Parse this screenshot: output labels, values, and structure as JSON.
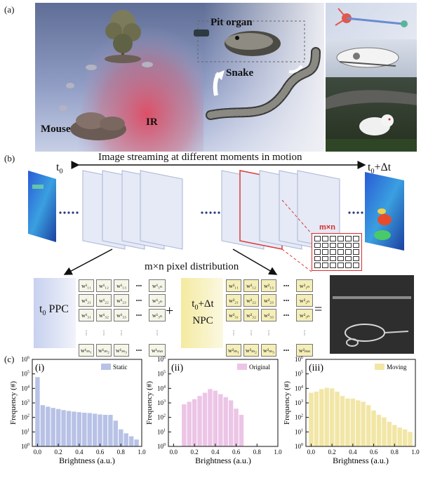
{
  "panel_a": {
    "label": "(a)",
    "labels": {
      "pit_organ": "Pit organ",
      "snake": "Snake",
      "mouse": "Mouse",
      "ir": "IR"
    }
  },
  "panel_b": {
    "label": "(b)",
    "streaming_caption": "Image streaming at different moments in motion",
    "t0": "t",
    "t0_sub": "0",
    "t1": "t",
    "t1_sub": "0",
    "t1_suffix": "+Δt",
    "mxn_small": "m×n",
    "pixel_distribution": "m×n pixel distribution",
    "ppc": "PPC",
    "npc_line1_suffix": "+Δt",
    "npc_line2": "NPC",
    "plus": "+",
    "equals": "=",
    "dots": "•••"
  },
  "panel_c": {
    "label": "(c)",
    "ylabel": "Frequency (#)",
    "xlabel": "Brightness (a.u.)"
  },
  "chart_data": [
    {
      "type": "bar",
      "title": "(i)",
      "legend": "Static",
      "color": "#b8c2e6",
      "xlabel": "Brightness (a.u.)",
      "ylabel": "Frequency (#)",
      "yscale": "log",
      "xlim": [
        -0.05,
        1.0
      ],
      "ylim": [
        1,
        1000000
      ],
      "xticks": [
        "0.0",
        "0.2",
        "0.4",
        "0.6",
        "0.8",
        "1.0"
      ],
      "yticks": [
        "10^0",
        "10^1",
        "10^2",
        "10^3",
        "10^4",
        "10^5",
        "10^6"
      ],
      "x": [
        0.0,
        0.05,
        0.1,
        0.15,
        0.2,
        0.25,
        0.3,
        0.35,
        0.4,
        0.45,
        0.5,
        0.55,
        0.6,
        0.65,
        0.7,
        0.75,
        0.8,
        0.85,
        0.9,
        0.95
      ],
      "values": [
        60000,
        700,
        550,
        450,
        380,
        320,
        280,
        250,
        230,
        210,
        200,
        180,
        160,
        150,
        150,
        60,
        15,
        8,
        5,
        3
      ]
    },
    {
      "type": "bar",
      "title": "(ii)",
      "legend": "Original",
      "color": "#ecc5e6",
      "xlabel": "Brightness (a.u.)",
      "ylabel": "Frequency (#)",
      "yscale": "log",
      "xlim": [
        -0.05,
        1.0
      ],
      "ylim": [
        1,
        1000000
      ],
      "xticks": [
        "0.0",
        "0.2",
        "0.4",
        "0.6",
        "0.8",
        "1.0"
      ],
      "yticks": [
        "10^0",
        "10^1",
        "10^2",
        "10^3",
        "10^4",
        "10^5",
        "10^6"
      ],
      "x": [
        0.1,
        0.15,
        0.2,
        0.25,
        0.3,
        0.35,
        0.4,
        0.45,
        0.5,
        0.55,
        0.6,
        0.65
      ],
      "values": [
        800,
        1200,
        1800,
        3000,
        5000,
        9000,
        7000,
        4000,
        2500,
        1500,
        400,
        150
      ]
    },
    {
      "type": "bar",
      "title": "(iii)",
      "legend": "Moving",
      "color": "#f2e6a6",
      "xlabel": "Brightness (a.u.)",
      "ylabel": "Frequency (#)",
      "yscale": "log",
      "xlim": [
        -0.05,
        1.0
      ],
      "ylim": [
        1,
        1000000
      ],
      "xticks": [
        "0.0",
        "0.2",
        "0.4",
        "0.6",
        "0.8",
        "1.0"
      ],
      "yticks": [
        "10^0",
        "10^1",
        "10^2",
        "10^3",
        "10^4",
        "10^5",
        "10^6"
      ],
      "x": [
        0.0,
        0.05,
        0.1,
        0.15,
        0.2,
        0.25,
        0.3,
        0.35,
        0.4,
        0.45,
        0.5,
        0.55,
        0.6,
        0.65,
        0.7,
        0.75,
        0.8,
        0.85,
        0.9,
        0.95
      ],
      "values": [
        5000,
        6000,
        9000,
        11000,
        10000,
        6000,
        3000,
        2000,
        2000,
        1500,
        1200,
        700,
        300,
        150,
        100,
        50,
        30,
        20,
        15,
        10
      ]
    }
  ]
}
